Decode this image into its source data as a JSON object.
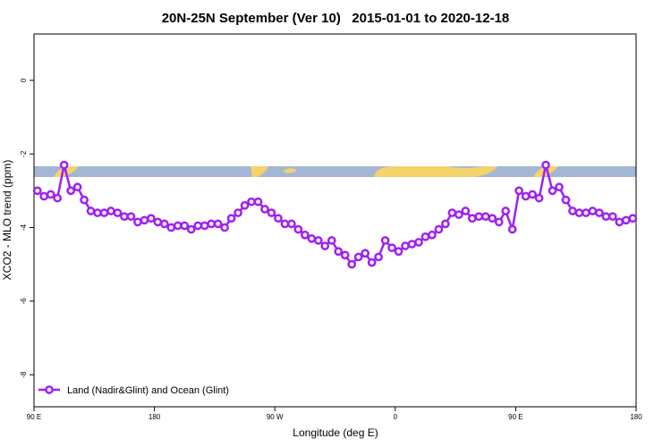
{
  "chart_data": {
    "type": "line",
    "title": "20N-25N September (Ver 10)   2015-01-01 to 2020-12-18",
    "x_label": "Longitude (deg E)",
    "y_label": "XCO2 - MLO trend (ppm)",
    "xlim": [
      90,
      540
    ],
    "xticks": [
      {
        "value": 90,
        "label": "90 E"
      },
      180,
      {
        "value": 270,
        "label": "90 W"
      },
      {
        "value": 360,
        "label": "0"
      },
      {
        "value": 450,
        "label": "90 E"
      },
      {
        "value": 540,
        "label": "180"
      }
    ],
    "ylim": [
      -8.87,
      1.26
    ],
    "yticks": [
      -8,
      -6,
      -4,
      -2,
      0
    ],
    "legend": "bottom-left",
    "x": [
      92.5,
      97.5,
      102.5,
      107.5,
      112.5,
      117.5,
      122.5,
      127.5,
      132.5,
      137.5,
      142.5,
      147.5,
      152.5,
      157.5,
      162.5,
      167.5,
      172.5,
      177.5,
      182.5,
      187.5,
      192.5,
      197.5,
      202.5,
      207.5,
      212.5,
      217.5,
      222.5,
      227.5,
      232.5,
      237.5,
      242.5,
      247.5,
      252.5,
      257.5,
      262.5,
      267.5,
      272.5,
      277.5,
      282.5,
      287.5,
      292.5,
      297.5,
      302.5,
      307.5,
      312.5,
      317.5,
      322.5,
      327.5,
      332.5,
      337.5,
      342.5,
      347.5,
      352.5,
      357.5,
      362.5,
      367.5,
      372.5,
      377.5,
      382.5,
      387.5,
      392.5,
      397.5,
      402.5,
      407.5,
      412.5,
      417.5,
      422.5,
      427.5,
      432.5,
      437.5,
      442.5,
      447.5,
      452.5,
      457.5,
      462.5,
      467.5,
      472.5,
      477.5,
      482.5,
      487.5,
      492.5,
      497.5,
      502.5,
      507.5,
      512.5,
      517.5,
      522.5,
      527.5,
      532.5,
      537.5
    ],
    "series": [
      {
        "name": "Land (Nadir&Glint) and Ocean (Glint)",
        "color": "#a020f0",
        "values": [
          -3.0,
          -3.15,
          -3.1,
          -3.2,
          -2.3,
          -3.0,
          -2.9,
          -3.25,
          -3.55,
          -3.6,
          -3.6,
          -3.55,
          -3.6,
          -3.7,
          -3.7,
          -3.85,
          -3.8,
          -3.75,
          -3.85,
          -3.9,
          -4.0,
          -3.95,
          -3.95,
          -4.05,
          -3.95,
          -3.95,
          -3.9,
          -3.9,
          -4.0,
          -3.75,
          -3.6,
          -3.4,
          -3.3,
          -3.3,
          -3.5,
          -3.6,
          -3.75,
          -3.9,
          -3.9,
          -4.05,
          -4.2,
          -4.3,
          -4.35,
          -4.5,
          -4.35,
          -4.65,
          -4.75,
          -5.0,
          -4.8,
          -4.7,
          -4.95,
          -4.8,
          -4.35,
          -4.55,
          -4.65,
          -4.5,
          -4.45,
          -4.4,
          -4.25,
          -4.2,
          -4.05,
          -3.9,
          -3.6,
          -3.65,
          -3.55,
          -3.75,
          -3.7,
          -3.7,
          -3.75,
          -3.85,
          -3.55,
          -4.05,
          -3.0,
          -3.15,
          -3.1,
          -3.2,
          -2.3,
          -3.0,
          -2.9,
          -3.25,
          -3.55,
          -3.6,
          -3.6,
          -3.55,
          -3.6,
          -3.7,
          -3.7,
          -3.85,
          -3.8,
          -3.75
        ]
      }
    ]
  }
}
